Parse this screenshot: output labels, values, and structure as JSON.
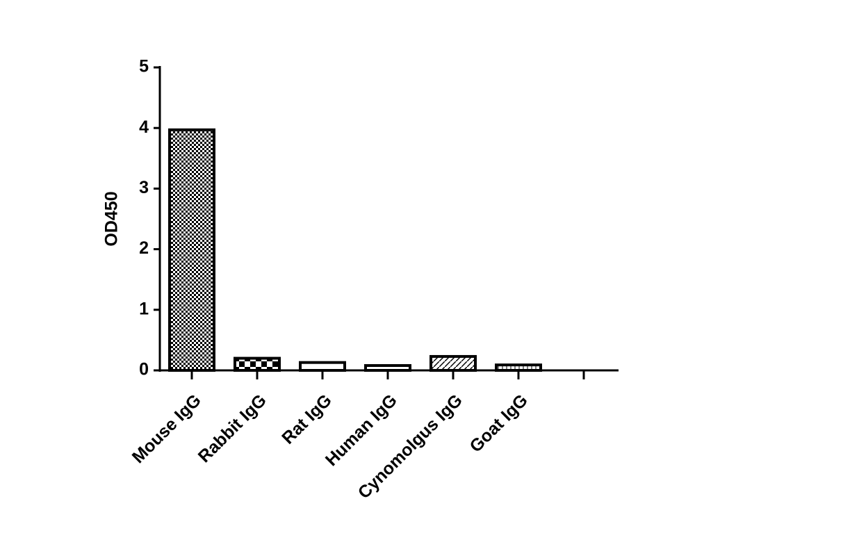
{
  "chart_data": {
    "type": "bar",
    "y_label": "OD450",
    "categories": [
      "Mouse IgG",
      "Rabbit IgG",
      "Rat IgG",
      "Human IgG",
      "Cynomolgus IgG",
      "Goat IgG",
      null
    ],
    "values": [
      3.97,
      0.2,
      0.13,
      0.08,
      0.23,
      0.09,
      null
    ],
    "color": "#000000",
    "ylim": [
      0,
      5
    ],
    "yticks": [
      0,
      1,
      2,
      3,
      4,
      5
    ],
    "grid": false
  }
}
